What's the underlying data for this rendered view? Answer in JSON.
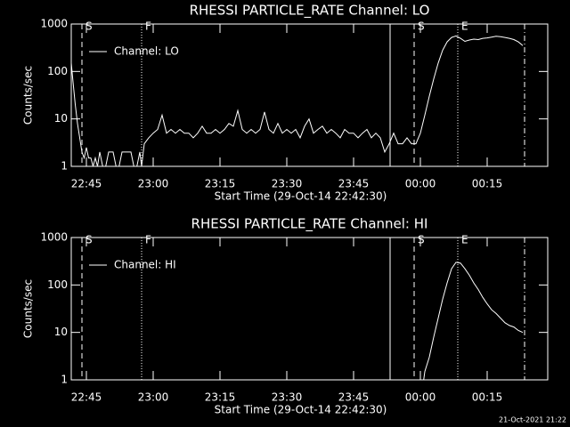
{
  "chart_data": [
    {
      "type": "line",
      "title": "RHESSI PARTICLE_RATE Channel: LO",
      "y_label": "Counts/sec",
      "x_label": "Start Time (29-Oct-14 22:42:30)",
      "log_y": true,
      "xlim": [
        41.6,
        148.6
      ],
      "xticks": [
        {
          "value": 45,
          "label": "22:45"
        },
        {
          "value": 60,
          "label": "23:00"
        },
        {
          "value": 75,
          "label": "23:15"
        },
        {
          "value": 90,
          "label": "23:30"
        },
        {
          "value": 105,
          "label": "23:45"
        },
        {
          "value": 120,
          "label": "00:00"
        },
        {
          "value": 135,
          "label": "00:15"
        }
      ],
      "ylim": [
        1,
        1000
      ],
      "yticks": [
        1,
        10,
        100,
        1000
      ],
      "legend": "upper left",
      "markers": [
        {
          "x": 44,
          "label": "S",
          "style": "dashed"
        },
        {
          "x": 57.4,
          "label": "F",
          "style": "dotted"
        },
        {
          "x": 113.2,
          "style": "solid"
        },
        {
          "x": 118.6,
          "label": "S",
          "style": "dashed"
        },
        {
          "x": 128.4,
          "label": "E",
          "style": "dotted"
        },
        {
          "x": 143.4,
          "style": "dashdot"
        }
      ],
      "series": [
        {
          "name": "Channel: LO",
          "color": "#ffffff",
          "x": [
            41.6,
            42,
            42.5,
            43,
            43.5,
            44,
            44.5,
            45,
            45.5,
            46,
            46.5,
            47,
            47.5,
            48,
            49,
            50,
            51,
            52,
            53,
            54,
            55,
            56,
            57,
            57.4,
            58,
            59,
            60,
            61,
            62,
            63,
            64,
            65,
            66,
            67,
            68,
            69,
            70,
            71,
            72,
            73,
            74,
            75,
            76,
            77,
            78,
            79,
            80,
            81,
            82,
            83,
            84,
            85,
            86,
            87,
            88,
            89,
            90,
            91,
            92,
            93,
            94,
            95,
            96,
            97,
            98,
            99,
            100,
            101,
            102,
            103,
            104,
            105,
            106,
            107,
            108,
            109,
            110,
            111,
            112,
            113,
            114,
            115,
            116,
            117,
            118,
            119,
            120,
            121,
            122,
            123,
            124,
            125,
            126,
            127,
            128,
            129,
            130,
            131,
            132,
            133,
            134,
            135,
            136,
            137,
            138,
            139,
            140,
            141,
            142,
            143
          ],
          "values": [
            150,
            60,
            20,
            8,
            4,
            2,
            1.5,
            2.5,
            1.5,
            1.5,
            1,
            1.5,
            1,
            2,
            0.7,
            2,
            2,
            0.7,
            2,
            2,
            2,
            0.7,
            2,
            1,
            3,
            4,
            5,
            6,
            12,
            5,
            6,
            5,
            6,
            5,
            5,
            4,
            5,
            7,
            5,
            5,
            6,
            5,
            6,
            8,
            7,
            15,
            6,
            5,
            6,
            5,
            6,
            14,
            6,
            5,
            8,
            5,
            6,
            5,
            6,
            4,
            7,
            10,
            5,
            6,
            7,
            5,
            6,
            5,
            4,
            6,
            5,
            5,
            4,
            5,
            6,
            4,
            5,
            4,
            2,
            3,
            5,
            3,
            3,
            4,
            3,
            3,
            5,
            12,
            30,
            70,
            150,
            280,
            420,
            520,
            560,
            500,
            430,
            460,
            480,
            470,
            500,
            510,
            530,
            550,
            540,
            520,
            500,
            470,
            420,
            350
          ]
        }
      ]
    },
    {
      "type": "line",
      "title": "RHESSI PARTICLE_RATE Channel: HI",
      "y_label": "Counts/sec",
      "x_label": "Start Time (29-Oct-14 22:42:30)",
      "log_y": true,
      "xlim": [
        41.6,
        148.6
      ],
      "xticks": [
        {
          "value": 45,
          "label": "22:45"
        },
        {
          "value": 60,
          "label": "23:00"
        },
        {
          "value": 75,
          "label": "23:15"
        },
        {
          "value": 90,
          "label": "23:30"
        },
        {
          "value": 105,
          "label": "23:45"
        },
        {
          "value": 120,
          "label": "00:00"
        },
        {
          "value": 135,
          "label": "00:15"
        }
      ],
      "ylim": [
        1,
        1000
      ],
      "yticks": [
        1,
        10,
        100,
        1000
      ],
      "legend": "upper left",
      "markers": [
        {
          "x": 44,
          "label": "S",
          "style": "dashed"
        },
        {
          "x": 57.4,
          "label": "F",
          "style": "dotted"
        },
        {
          "x": 113.2,
          "style": "solid"
        },
        {
          "x": 118.6,
          "label": "S",
          "style": "dashed"
        },
        {
          "x": 128.4,
          "label": "E",
          "style": "dotted"
        },
        {
          "x": 143.4,
          "style": "dashdot"
        }
      ],
      "series": [
        {
          "name": "Channel: HI",
          "color": "#ffffff",
          "x": [
            120.6,
            121,
            122,
            123,
            124,
            125,
            126,
            127,
            128,
            129,
            130,
            131,
            132,
            133,
            134,
            135,
            136,
            137,
            138,
            139,
            140,
            141,
            142,
            143
          ],
          "values": [
            0.8,
            1.5,
            3,
            8,
            20,
            50,
            110,
            220,
            300,
            290,
            220,
            160,
            110,
            80,
            55,
            40,
            30,
            25,
            20,
            16,
            14,
            13,
            11,
            10
          ]
        }
      ]
    }
  ],
  "footer": "21-Oct-2021 21:22"
}
